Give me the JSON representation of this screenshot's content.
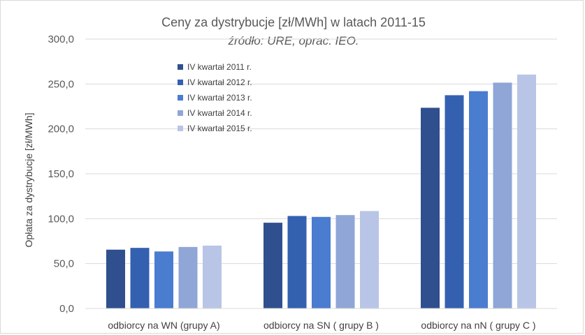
{
  "chart_data": {
    "type": "bar",
    "title": "Ceny za dystrybucje [zł/MWh] w latach 2011-15",
    "subtitle": "źródło: URE, oprac. IEO.",
    "xlabel": "",
    "ylabel": "Opłata za dystrybucje [zł/MWh]",
    "ylim": [
      0,
      300
    ],
    "yticks": [
      "0,0",
      "50,0",
      "100,0",
      "150,0",
      "200,0",
      "250,0",
      "300,0"
    ],
    "grid": true,
    "legend_position": "top-left",
    "categories": [
      "odbiorcy na WN (grupy A)",
      "odbiorcy na SN ( grupy B )",
      "odbiorcy na nN ( grupy C )"
    ],
    "series": [
      {
        "name": "IV kwartał 2011 r.",
        "color": "#2f4f8f",
        "values": [
          65.5,
          95.5,
          223.5
        ]
      },
      {
        "name": "IV kwartał 2012 r.",
        "color": "#3460b0",
        "values": [
          67.5,
          103.0,
          237.5
        ]
      },
      {
        "name": "IV kwartał 2013 r.",
        "color": "#4a7cd0",
        "values": [
          63.5,
          102.0,
          242.0
        ]
      },
      {
        "name": "IV kwartał 2014 r.",
        "color": "#8fa6d6",
        "values": [
          68.5,
          104.0,
          251.5
        ]
      },
      {
        "name": "IV kwartał 2015 r.",
        "color": "#b8c5e6",
        "values": [
          70.0,
          108.5,
          260.5
        ]
      }
    ]
  }
}
